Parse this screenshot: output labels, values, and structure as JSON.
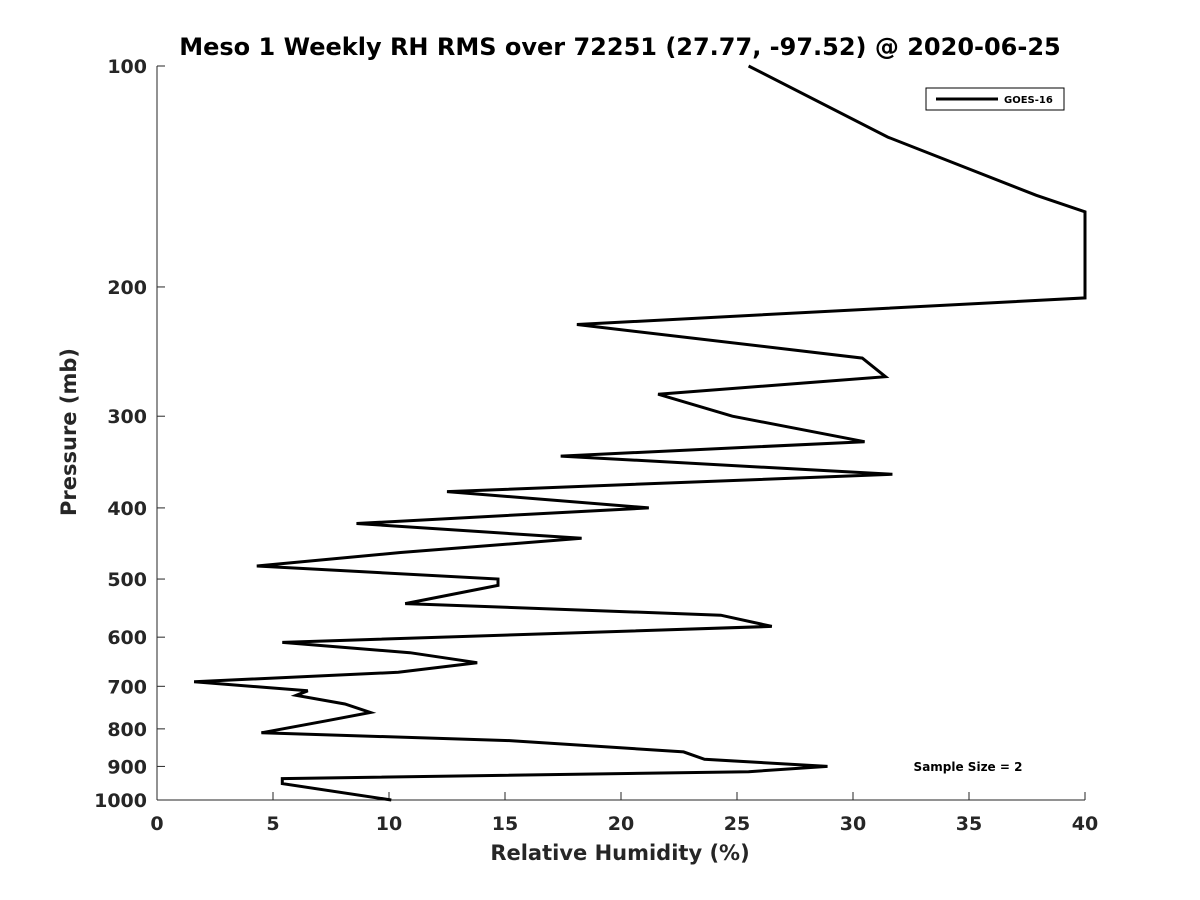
{
  "chart_data": {
    "type": "line",
    "title": "Meso 1 Weekly RH RMS over 72251 (27.77, -97.52) @ 2020-06-25",
    "xlabel": "Relative Humidity (%)",
    "ylabel": "Pressure (mb)",
    "xlim": [
      0,
      40
    ],
    "ylim": [
      100,
      1000
    ],
    "y_scale": "log",
    "y_reversed": true,
    "x_ticks": [
      0,
      5,
      10,
      15,
      20,
      25,
      30,
      35,
      40
    ],
    "y_ticks": [
      100,
      200,
      300,
      400,
      500,
      600,
      700,
      800,
      900,
      1000
    ],
    "grid": false,
    "legend": {
      "placement": "top-right",
      "entries": [
        "GOES-16"
      ]
    },
    "annotation": "Sample Size = 2",
    "series": [
      {
        "name": "GOES-16",
        "color": "#000000",
        "points": [
          [
            25.5,
            100
          ],
          [
            31.5,
            125
          ],
          [
            37.9,
            150
          ],
          [
            40.0,
            158
          ],
          [
            40.0,
            207
          ],
          [
            18.1,
            225
          ],
          [
            30.4,
            250
          ],
          [
            31.4,
            265
          ],
          [
            21.6,
            280
          ],
          [
            24.8,
            300
          ],
          [
            30.5,
            325
          ],
          [
            17.4,
            340
          ],
          [
            31.7,
            360
          ],
          [
            12.5,
            380
          ],
          [
            21.2,
            400
          ],
          [
            8.6,
            420
          ],
          [
            18.3,
            440
          ],
          [
            10.5,
            460
          ],
          [
            4.3,
            480
          ],
          [
            14.7,
            500
          ],
          [
            14.7,
            510
          ],
          [
            10.7,
            540
          ],
          [
            24.3,
            560
          ],
          [
            26.5,
            580
          ],
          [
            5.4,
            610
          ],
          [
            10.9,
            630
          ],
          [
            13.8,
            650
          ],
          [
            10.4,
            670
          ],
          [
            1.6,
            690
          ],
          [
            6.5,
            710
          ],
          [
            6.0,
            720
          ],
          [
            8.1,
            740
          ],
          [
            9.2,
            760
          ],
          [
            7.3,
            780
          ],
          [
            4.5,
            810
          ],
          [
            15.2,
            830
          ],
          [
            22.7,
            860
          ],
          [
            23.6,
            880
          ],
          [
            28.9,
            900
          ],
          [
            25.5,
            915
          ],
          [
            5.4,
            935
          ],
          [
            5.4,
            950
          ],
          [
            10.1,
            1000
          ]
        ]
      }
    ]
  }
}
